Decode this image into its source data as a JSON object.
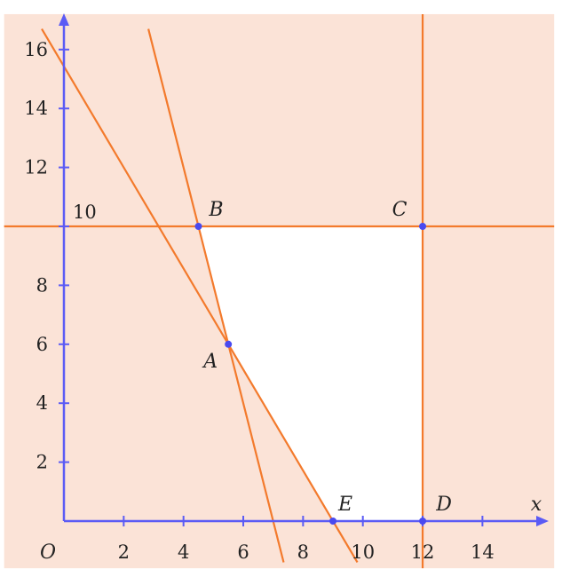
{
  "chart_data": {
    "type": "line",
    "xlabel": "x",
    "origin_label": "O",
    "x_ticks": [
      2,
      4,
      6,
      8,
      10,
      12,
      14
    ],
    "y_ticks": [
      2,
      4,
      6,
      8,
      12,
      14,
      16
    ],
    "y_special_label": {
      "value": 10,
      "text": "10"
    },
    "xlim": [
      -2,
      16.4
    ],
    "ylim": [
      -1.6,
      17.2
    ],
    "lines": [
      {
        "kind": "horizontal",
        "y": 10
      },
      {
        "kind": "vertical",
        "x": 12
      },
      {
        "kind": "general",
        "a": 4,
        "b": 1,
        "c": 28
      },
      {
        "kind": "general",
        "a": 12,
        "b": 7,
        "c": 108
      }
    ],
    "points": [
      {
        "label": "A",
        "x": 5.5,
        "y": 6
      },
      {
        "label": "B",
        "x": 4.5,
        "y": 10
      },
      {
        "label": "C",
        "x": 12,
        "y": 10
      },
      {
        "label": "D",
        "x": 12,
        "y": 0
      },
      {
        "label": "E",
        "x": 9,
        "y": 0
      }
    ],
    "feasible_region": [
      "B",
      "C",
      "D",
      "E",
      "A"
    ],
    "colors": {
      "shaded": "#fbe3d7",
      "feasible": "#ffffff",
      "lines": "#f37a2c",
      "axes": "#5b5bf5",
      "points": "#4a4af0"
    }
  }
}
